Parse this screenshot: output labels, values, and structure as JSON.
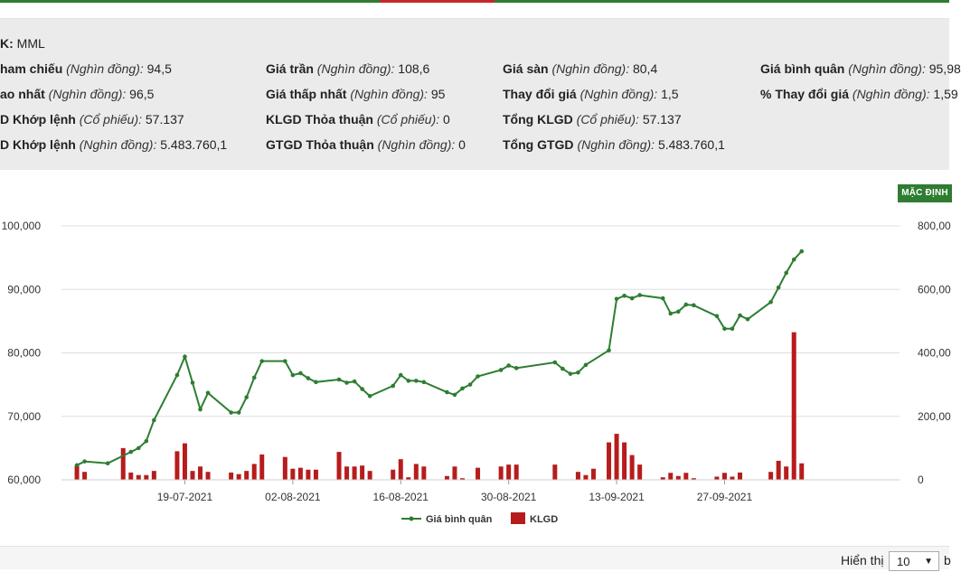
{
  "header": {
    "symbol_label": "K:",
    "symbol": "MML"
  },
  "info": {
    "row1": [
      {
        "label": "ham chiếu",
        "unit": "(Nghìn đồng):",
        "value": "94,5"
      },
      {
        "label": "Giá trần",
        "unit": "(Nghìn đồng):",
        "value": "108,6"
      },
      {
        "label": "Giá sàn",
        "unit": "(Nghìn đồng):",
        "value": "80,4"
      },
      {
        "label": "Giá bình quân",
        "unit": "(Nghìn đồng):",
        "value": "95,98"
      }
    ],
    "row2": [
      {
        "label": "ao nhất",
        "unit": "(Nghìn đồng):",
        "value": "96,5"
      },
      {
        "label": "Giá thấp nhất",
        "unit": "(Nghìn đồng):",
        "value": "95"
      },
      {
        "label": "Thay đổi giá",
        "unit": "(Nghìn đồng):",
        "value": "1,5"
      },
      {
        "label": "% Thay đổi giá",
        "unit": "(Nghìn đồng):",
        "value": "1,59"
      }
    ],
    "row3": [
      {
        "label": "D Khớp lệnh",
        "unit": "(Cổ phiếu):",
        "value": "57.137"
      },
      {
        "label": "KLGD Thỏa thuận",
        "unit": "(Cổ phiếu):",
        "value": "0"
      },
      {
        "label": "Tổng KLGD",
        "unit": "(Cổ phiếu):",
        "value": "57.137"
      }
    ],
    "row4": [
      {
        "label": "D Khớp lệnh",
        "unit": "(Nghìn đồng):",
        "value": "5.483.760,1"
      },
      {
        "label": "GTGD Thỏa thuận",
        "unit": "(Nghìn đồng):",
        "value": "0"
      },
      {
        "label": "Tổng GTGD",
        "unit": "(Nghìn đồng):",
        "value": "5.483.760,1"
      }
    ]
  },
  "mac_dinh_label": "MẶC ĐỊNH",
  "footer": {
    "show_label": "Hiển thị",
    "show_value": "10",
    "after_label": "b"
  },
  "colors": {
    "price_line": "#2e7d32",
    "volume_bar": "#b71c1c",
    "grid": "#dddddd"
  },
  "chart_data": {
    "type": "bar+line",
    "x_tick_labels": [
      "19-07-2021",
      "02-08-2021",
      "16-08-2021",
      "30-08-2021",
      "13-09-2021",
      "27-09-2021"
    ],
    "y_left_ticks": [
      "60,000",
      "70,000",
      "80,000",
      "90,000",
      "100,000"
    ],
    "y_right_ticks": [
      "0",
      "200,00",
      "400,00",
      "600,00",
      "800,00"
    ],
    "ylim_left": [
      60000,
      100000
    ],
    "ylim_right": [
      0,
      800000
    ],
    "legend_placement": "bottom-center",
    "grid": true,
    "series": [
      {
        "name": "Giá bình quân",
        "type": "line",
        "axis": "left",
        "points": [
          {
            "d": "2021-07-05",
            "v": 62300
          },
          {
            "d": "2021-07-06",
            "v": 62900
          },
          {
            "d": "2021-07-09",
            "v": 62600
          },
          {
            "d": "2021-07-12",
            "v": 64400
          },
          {
            "d": "2021-07-13",
            "v": 65000
          },
          {
            "d": "2021-07-14",
            "v": 66100
          },
          {
            "d": "2021-07-15",
            "v": 69400
          },
          {
            "d": "2021-07-18",
            "v": 76500
          },
          {
            "d": "2021-07-19",
            "v": 79400
          },
          {
            "d": "2021-07-20",
            "v": 75300
          },
          {
            "d": "2021-07-21",
            "v": 71100
          },
          {
            "d": "2021-07-22",
            "v": 73700
          },
          {
            "d": "2021-07-25",
            "v": 70600
          },
          {
            "d": "2021-07-26",
            "v": 70600
          },
          {
            "d": "2021-07-27",
            "v": 73000
          },
          {
            "d": "2021-07-28",
            "v": 76100
          },
          {
            "d": "2021-07-29",
            "v": 78700
          },
          {
            "d": "2021-08-01",
            "v": 78700
          },
          {
            "d": "2021-08-02",
            "v": 76500
          },
          {
            "d": "2021-08-03",
            "v": 76800
          },
          {
            "d": "2021-08-04",
            "v": 76000
          },
          {
            "d": "2021-08-05",
            "v": 75400
          },
          {
            "d": "2021-08-08",
            "v": 75800
          },
          {
            "d": "2021-08-09",
            "v": 75300
          },
          {
            "d": "2021-08-10",
            "v": 75500
          },
          {
            "d": "2021-08-11",
            "v": 74300
          },
          {
            "d": "2021-08-12",
            "v": 73200
          },
          {
            "d": "2021-08-15",
            "v": 74800
          },
          {
            "d": "2021-08-16",
            "v": 76500
          },
          {
            "d": "2021-08-17",
            "v": 75600
          },
          {
            "d": "2021-08-18",
            "v": 75600
          },
          {
            "d": "2021-08-19",
            "v": 75400
          },
          {
            "d": "2021-08-22",
            "v": 73800
          },
          {
            "d": "2021-08-23",
            "v": 73400
          },
          {
            "d": "2021-08-24",
            "v": 74400
          },
          {
            "d": "2021-08-25",
            "v": 75000
          },
          {
            "d": "2021-08-26",
            "v": 76300
          },
          {
            "d": "2021-08-29",
            "v": 77300
          },
          {
            "d": "2021-08-30",
            "v": 78000
          },
          {
            "d": "2021-08-31",
            "v": 77600
          },
          {
            "d": "2021-09-05",
            "v": 78500
          },
          {
            "d": "2021-09-06",
            "v": 77500
          },
          {
            "d": "2021-09-07",
            "v": 76700
          },
          {
            "d": "2021-09-08",
            "v": 76900
          },
          {
            "d": "2021-09-09",
            "v": 78100
          },
          {
            "d": "2021-09-12",
            "v": 80400
          },
          {
            "d": "2021-09-13",
            "v": 88500
          },
          {
            "d": "2021-09-14",
            "v": 89000
          },
          {
            "d": "2021-09-15",
            "v": 88600
          },
          {
            "d": "2021-09-16",
            "v": 89100
          },
          {
            "d": "2021-09-19",
            "v": 88600
          },
          {
            "d": "2021-09-20",
            "v": 86200
          },
          {
            "d": "2021-09-21",
            "v": 86500
          },
          {
            "d": "2021-09-22",
            "v": 87600
          },
          {
            "d": "2021-09-23",
            "v": 87500
          },
          {
            "d": "2021-09-26",
            "v": 85800
          },
          {
            "d": "2021-09-27",
            "v": 83800
          },
          {
            "d": "2021-09-28",
            "v": 83800
          },
          {
            "d": "2021-09-29",
            "v": 85900
          },
          {
            "d": "2021-09-30",
            "v": 85300
          },
          {
            "d": "2021-10-03",
            "v": 88000
          },
          {
            "d": "2021-10-04",
            "v": 90300
          },
          {
            "d": "2021-10-05",
            "v": 92600
          },
          {
            "d": "2021-10-06",
            "v": 94700
          },
          {
            "d": "2021-10-07",
            "v": 96000
          }
        ]
      },
      {
        "name": "KLGD",
        "type": "bar",
        "axis": "right",
        "points": [
          {
            "d": "2021-07-05",
            "v": 45000
          },
          {
            "d": "2021-07-06",
            "v": 25000
          },
          {
            "d": "2021-07-11",
            "v": 100000
          },
          {
            "d": "2021-07-12",
            "v": 23000
          },
          {
            "d": "2021-07-13",
            "v": 15000
          },
          {
            "d": "2021-07-14",
            "v": 15000
          },
          {
            "d": "2021-07-15",
            "v": 28000
          },
          {
            "d": "2021-07-18",
            "v": 90000
          },
          {
            "d": "2021-07-19",
            "v": 115000
          },
          {
            "d": "2021-07-20",
            "v": 28000
          },
          {
            "d": "2021-07-21",
            "v": 42000
          },
          {
            "d": "2021-07-22",
            "v": 25000
          },
          {
            "d": "2021-07-25",
            "v": 23000
          },
          {
            "d": "2021-07-26",
            "v": 18000
          },
          {
            "d": "2021-07-27",
            "v": 28000
          },
          {
            "d": "2021-07-28",
            "v": 50000
          },
          {
            "d": "2021-07-29",
            "v": 80000
          },
          {
            "d": "2021-08-01",
            "v": 72000
          },
          {
            "d": "2021-08-02",
            "v": 35000
          },
          {
            "d": "2021-08-03",
            "v": 38000
          },
          {
            "d": "2021-08-04",
            "v": 32000
          },
          {
            "d": "2021-08-05",
            "v": 32000
          },
          {
            "d": "2021-08-08",
            "v": 88000
          },
          {
            "d": "2021-08-09",
            "v": 42000
          },
          {
            "d": "2021-08-10",
            "v": 42000
          },
          {
            "d": "2021-08-11",
            "v": 45000
          },
          {
            "d": "2021-08-12",
            "v": 28000
          },
          {
            "d": "2021-08-15",
            "v": 32000
          },
          {
            "d": "2021-08-16",
            "v": 65000
          },
          {
            "d": "2021-08-17",
            "v": 8000
          },
          {
            "d": "2021-08-18",
            "v": 50000
          },
          {
            "d": "2021-08-19",
            "v": 42000
          },
          {
            "d": "2021-08-22",
            "v": 12000
          },
          {
            "d": "2021-08-23",
            "v": 42000
          },
          {
            "d": "2021-08-24",
            "v": 5000
          },
          {
            "d": "2021-08-26",
            "v": 38000
          },
          {
            "d": "2021-08-29",
            "v": 42000
          },
          {
            "d": "2021-08-30",
            "v": 48000
          },
          {
            "d": "2021-08-31",
            "v": 48000
          },
          {
            "d": "2021-09-05",
            "v": 48000
          },
          {
            "d": "2021-09-08",
            "v": 25000
          },
          {
            "d": "2021-09-09",
            "v": 15000
          },
          {
            "d": "2021-09-10",
            "v": 35000
          },
          {
            "d": "2021-09-12",
            "v": 118000
          },
          {
            "d": "2021-09-13",
            "v": 145000
          },
          {
            "d": "2021-09-14",
            "v": 118000
          },
          {
            "d": "2021-09-15",
            "v": 78000
          },
          {
            "d": "2021-09-16",
            "v": 48000
          },
          {
            "d": "2021-09-19",
            "v": 8000
          },
          {
            "d": "2021-09-20",
            "v": 22000
          },
          {
            "d": "2021-09-21",
            "v": 12000
          },
          {
            "d": "2021-09-22",
            "v": 22000
          },
          {
            "d": "2021-09-23",
            "v": 5000
          },
          {
            "d": "2021-09-26",
            "v": 10000
          },
          {
            "d": "2021-09-27",
            "v": 22000
          },
          {
            "d": "2021-09-28",
            "v": 10000
          },
          {
            "d": "2021-09-29",
            "v": 23000
          },
          {
            "d": "2021-10-03",
            "v": 25000
          },
          {
            "d": "2021-10-04",
            "v": 60000
          },
          {
            "d": "2021-10-05",
            "v": 42000
          },
          {
            "d": "2021-10-06",
            "v": 465000
          },
          {
            "d": "2021-10-07",
            "v": 52000
          }
        ]
      }
    ]
  }
}
